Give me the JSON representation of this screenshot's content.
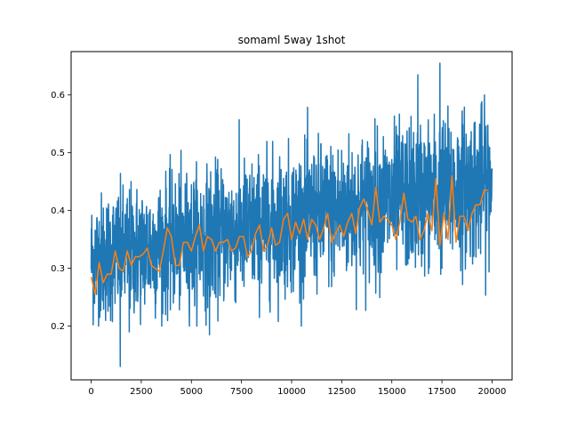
{
  "chart_data": {
    "type": "line",
    "title": "somaml 5way 1shot",
    "xlabel": "",
    "ylabel": "",
    "xlim": [
      -1000,
      21000
    ],
    "ylim": [
      0.107,
      0.675
    ],
    "grid": false,
    "x_ticks": [
      0,
      2500,
      5000,
      7500,
      10000,
      12500,
      15000,
      17500,
      20000
    ],
    "x_tick_labels": [
      "0",
      "2500",
      "5000",
      "7500",
      "10000",
      "12500",
      "15000",
      "17500",
      "20000"
    ],
    "y_ticks": [
      0.2,
      0.3,
      0.4,
      0.5,
      0.6
    ],
    "y_tick_labels": [
      "0.2",
      "0.3",
      "0.4",
      "0.5",
      "0.6"
    ],
    "series": [
      {
        "color": "#1f77b4",
        "x_start": 0,
        "x_end": 20000,
        "point_count": 2000,
        "trend_start": 0.315,
        "trend_end": 0.45,
        "spread_start": 0.055,
        "spread_end": 0.065,
        "extremes": [
          {
            "x": 1450,
            "y": 0.13
          },
          {
            "x": 5900,
            "y": 0.185
          },
          {
            "x": 17400,
            "y": 0.655
          },
          {
            "x": 16300,
            "y": 0.635
          },
          {
            "x": 1900,
            "y": 0.19
          }
        ]
      },
      {
        "color": "#ff7f0e",
        "x": [
          0,
          200,
          400,
          600,
          800,
          1000,
          1200,
          1400,
          1600,
          1800,
          2000,
          2200,
          2400,
          2600,
          2800,
          3000,
          3200,
          3400,
          3600,
          3800,
          4000,
          4200,
          4400,
          4600,
          4800,
          5000,
          5200,
          5400,
          5600,
          5800,
          6000,
          6200,
          6400,
          6600,
          6800,
          7000,
          7200,
          7400,
          7600,
          7800,
          8000,
          8200,
          8400,
          8600,
          8800,
          9000,
          9200,
          9400,
          9600,
          9800,
          10000,
          10200,
          10400,
          10600,
          10800,
          11000,
          11200,
          11400,
          11600,
          11800,
          12000,
          12200,
          12400,
          12600,
          12800,
          13000,
          13200,
          13400,
          13600,
          13800,
          14000,
          14200,
          14400,
          14600,
          14800,
          15000,
          15200,
          15400,
          15600,
          15800,
          16000,
          16200,
          16400,
          16600,
          16800,
          17000,
          17200,
          17400,
          17600,
          17800,
          18000,
          18200,
          18400,
          18600,
          18800,
          19000,
          19200,
          19400,
          19600,
          19800
        ],
        "y": [
          0.285,
          0.255,
          0.31,
          0.275,
          0.29,
          0.29,
          0.33,
          0.3,
          0.295,
          0.33,
          0.305,
          0.32,
          0.32,
          0.325,
          0.335,
          0.305,
          0.3,
          0.295,
          0.33,
          0.37,
          0.355,
          0.305,
          0.305,
          0.345,
          0.345,
          0.33,
          0.355,
          0.375,
          0.33,
          0.355,
          0.35,
          0.33,
          0.345,
          0.345,
          0.35,
          0.33,
          0.335,
          0.355,
          0.355,
          0.32,
          0.33,
          0.36,
          0.375,
          0.33,
          0.34,
          0.37,
          0.34,
          0.345,
          0.385,
          0.395,
          0.35,
          0.38,
          0.36,
          0.385,
          0.35,
          0.385,
          0.375,
          0.35,
          0.37,
          0.395,
          0.345,
          0.36,
          0.375,
          0.355,
          0.38,
          0.395,
          0.36,
          0.405,
          0.42,
          0.4,
          0.375,
          0.44,
          0.38,
          0.39,
          0.385,
          0.375,
          0.35,
          0.38,
          0.43,
          0.385,
          0.38,
          0.39,
          0.35,
          0.365,
          0.395,
          0.365,
          0.455,
          0.34,
          0.395,
          0.35,
          0.46,
          0.345,
          0.39,
          0.39,
          0.365,
          0.395,
          0.41,
          0.41,
          0.435,
          0.435
        ]
      }
    ]
  }
}
